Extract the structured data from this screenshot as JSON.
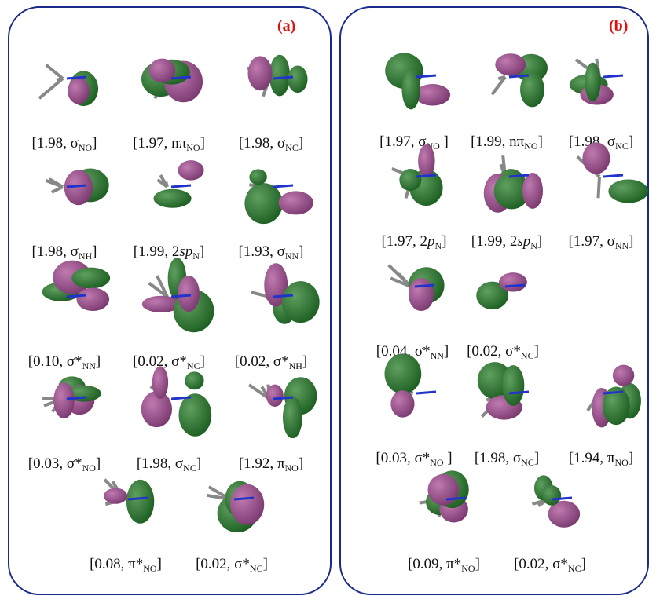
{
  "panels": [
    {
      "tag": "(a)",
      "items": [
        [
          {
            "text": "[1.98, σ",
            "style": "normal"
          },
          {
            "text": "NO",
            "style": "sub"
          },
          {
            "text": "]",
            "style": "normal"
          }
        ],
        [
          {
            "text": "[1.97, nπ",
            "style": "normal"
          },
          {
            "text": "NO",
            "style": "sub"
          },
          {
            "text": "]",
            "style": "normal"
          }
        ],
        [
          {
            "text": "[1.98, σ",
            "style": "normal"
          },
          {
            "text": "NC",
            "style": "sub"
          },
          {
            "text": "]",
            "style": "normal"
          }
        ],
        [
          {
            "text": "[1.98, σ",
            "style": "normal"
          },
          {
            "text": "NH",
            "style": "sub"
          },
          {
            "text": "]",
            "style": "normal"
          }
        ],
        [
          {
            "text": "[1.99, 2",
            "style": "normal"
          },
          {
            "text": "sp",
            "style": "italic"
          },
          {
            "text": "N",
            "style": "sub"
          },
          {
            "text": "]",
            "style": "normal"
          }
        ],
        [
          {
            "text": "[1.93, σ",
            "style": "normal"
          },
          {
            "text": "NN",
            "style": "sub"
          },
          {
            "text": "]",
            "style": "normal"
          }
        ],
        [
          {
            "text": "[0.10, σ*",
            "style": "normal"
          },
          {
            "text": "NN",
            "style": "sub"
          },
          {
            "text": "]",
            "style": "normal"
          }
        ],
        [
          {
            "text": "[0.02, σ*",
            "style": "normal"
          },
          {
            "text": "NC",
            "style": "sub"
          },
          {
            "text": "]",
            "style": "normal"
          }
        ],
        [
          {
            "text": "[0.02, σ*",
            "style": "normal"
          },
          {
            "text": "NH",
            "style": "sub"
          },
          {
            "text": "]",
            "style": "normal"
          }
        ],
        [
          {
            "text": "[0.03, σ*",
            "style": "normal"
          },
          {
            "text": "NO",
            "style": "sub"
          },
          {
            "text": "]",
            "style": "normal"
          }
        ],
        [
          {
            "text": "[1.98, σ",
            "style": "normal"
          },
          {
            "text": "NC",
            "style": "sub"
          },
          {
            "text": "]",
            "style": "normal"
          }
        ],
        [
          {
            "text": "[1.92, π",
            "style": "normal"
          },
          {
            "text": "NO",
            "style": "sub"
          },
          {
            "text": "]",
            "style": "normal"
          }
        ],
        [
          {
            "text": "[0.08, π*",
            "style": "normal"
          },
          {
            "text": "NO",
            "style": "sub"
          },
          {
            "text": "]",
            "style": "normal"
          }
        ],
        [
          {
            "text": "[0.02, σ*",
            "style": "normal"
          },
          {
            "text": "NC",
            "style": "sub"
          },
          {
            "text": "]",
            "style": "normal"
          }
        ]
      ]
    },
    {
      "tag": "(b)",
      "items": [
        [
          {
            "text": "[1.97, σ",
            "style": "normal"
          },
          {
            "text": "NO",
            "style": "sub"
          },
          {
            "text": " ]",
            "style": "normal"
          }
        ],
        [
          {
            "text": "[1.99, nπ",
            "style": "normal"
          },
          {
            "text": "NO",
            "style": "sub"
          },
          {
            "text": "]",
            "style": "normal"
          }
        ],
        [
          {
            "text": "[1.98, σ",
            "style": "normal"
          },
          {
            "text": "NC",
            "style": "sub"
          },
          {
            "text": "]",
            "style": "normal"
          }
        ],
        [
          {
            "text": "[1.97, 2",
            "style": "normal"
          },
          {
            "text": "p",
            "style": "italic"
          },
          {
            "text": "N",
            "style": "sub"
          },
          {
            "text": "]",
            "style": "normal"
          }
        ],
        [
          {
            "text": "[1.99, 2",
            "style": "normal"
          },
          {
            "text": "sp",
            "style": "italic"
          },
          {
            "text": "N",
            "style": "sub"
          },
          {
            "text": "]",
            "style": "normal"
          }
        ],
        [
          {
            "text": "[1.97, σ",
            "style": "normal"
          },
          {
            "text": "NN",
            "style": "sub"
          },
          {
            "text": "]",
            "style": "normal"
          }
        ],
        [
          {
            "text": "[0.04, σ*",
            "style": "normal"
          },
          {
            "text": "NN",
            "style": "sub"
          },
          {
            "text": "]",
            "style": "normal"
          }
        ],
        [
          {
            "text": "[0.02, σ*",
            "style": "normal"
          },
          {
            "text": "NC",
            "style": "sub"
          },
          {
            "text": "]",
            "style": "normal"
          }
        ],
        [
          {
            "text": "[0.03, σ*",
            "style": "normal"
          },
          {
            "text": "NO",
            "style": "sub"
          },
          {
            "text": " ]",
            "style": "normal"
          }
        ],
        [
          {
            "text": "[1.98, σ",
            "style": "normal"
          },
          {
            "text": "NC",
            "style": "sub"
          },
          {
            "text": "]",
            "style": "normal"
          }
        ],
        [
          {
            "text": "[1.94, π",
            "style": "normal"
          },
          {
            "text": "NO",
            "style": "sub"
          },
          {
            "text": "]",
            "style": "normal"
          }
        ],
        [
          {
            "text": "[0.09, π*",
            "style": "normal"
          },
          {
            "text": "NO",
            "style": "sub"
          },
          {
            "text": "]",
            "style": "normal"
          }
        ],
        [
          {
            "text": "[0.02, σ*",
            "style": "normal"
          },
          {
            "text": "NC",
            "style": "sub"
          },
          {
            "text": "]",
            "style": "normal"
          }
        ]
      ]
    }
  ]
}
